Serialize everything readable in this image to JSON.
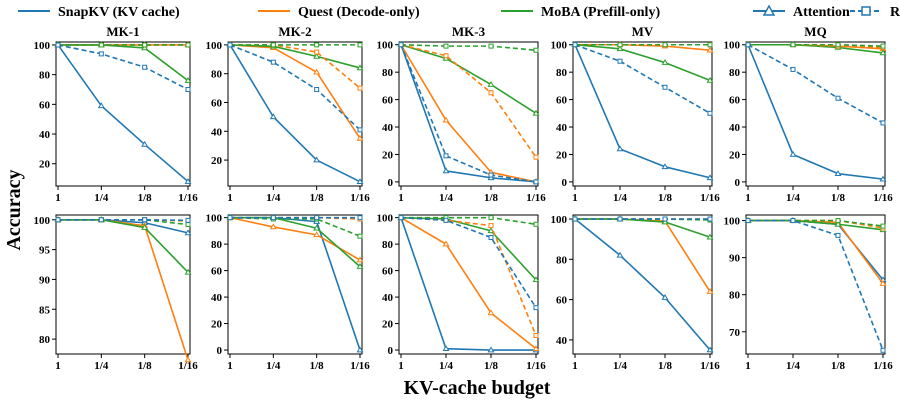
{
  "figure": {
    "ylabel": "Accuracy",
    "xlabel": "KV-cache budget",
    "legend": {
      "placement": "top",
      "entries": [
        {
          "label": "SnapKV (KV cache)",
          "color": "#1f77b4",
          "style": "solid",
          "marker": "none"
        },
        {
          "label": "Quest (Decode-only)",
          "color": "#ff7f0e",
          "style": "solid",
          "marker": "none"
        },
        {
          "label": "MoBA (Prefill-only)",
          "color": "#2ca02c",
          "style": "solid",
          "marker": "none"
        },
        {
          "label": "Attention",
          "color": "#1f77b4",
          "style": "solid",
          "marker": "triangle"
        },
        {
          "label": "RAT+",
          "color": "#1f77b4",
          "style": "dashed",
          "marker": "square"
        }
      ]
    }
  },
  "chart_data": [
    {
      "type": "line",
      "title": "MK-1",
      "row": 0,
      "col": 0,
      "xcategories": [
        "1",
        "1/4",
        "1/8",
        "1/16"
      ],
      "ylim": [
        5,
        102
      ],
      "yticks": [
        20,
        40,
        60,
        80,
        100
      ],
      "grid": false,
      "series": [
        {
          "name": "SnapKV (KV cache)",
          "color": "#1f77b4",
          "values": [
            100,
            59,
            33,
            8
          ]
        },
        {
          "name": "Quest (Decode-only)",
          "color": "#ff7f0e",
          "values": [
            100,
            100,
            100,
            100
          ]
        },
        {
          "name": "MoBA (Prefill-only)",
          "color": "#2ca02c",
          "values": [
            100,
            100,
            98,
            76
          ]
        },
        {
          "name": "Quest+RAT+",
          "color": "#ff7f0e",
          "dashed": true,
          "values": [
            100,
            100,
            100,
            100
          ]
        },
        {
          "name": "MoBA+RAT+",
          "color": "#2ca02c",
          "dashed": true,
          "values": [
            100,
            100,
            100,
            100
          ]
        },
        {
          "name": "SnapKV+RAT+",
          "color": "#1f77b4",
          "dashed": true,
          "values": [
            100,
            94,
            85,
            70
          ]
        }
      ]
    },
    {
      "type": "line",
      "title": "MK-2",
      "row": 0,
      "col": 1,
      "xcategories": [
        "1",
        "1/4",
        "1/8",
        "1/16"
      ],
      "ylim": [
        2,
        102
      ],
      "yticks": [
        20,
        40,
        60,
        80,
        100
      ],
      "grid": false,
      "series": [
        {
          "name": "SnapKV (KV cache)",
          "color": "#1f77b4",
          "values": [
            100,
            50,
            20,
            5
          ]
        },
        {
          "name": "Quest (Decode-only)",
          "color": "#ff7f0e",
          "values": [
            100,
            98,
            81,
            35
          ]
        },
        {
          "name": "MoBA (Prefill-only)",
          "color": "#2ca02c",
          "values": [
            100,
            99,
            92,
            84
          ]
        },
        {
          "name": "Quest+RAT+",
          "color": "#ff7f0e",
          "dashed": true,
          "values": [
            100,
            100,
            95,
            70
          ]
        },
        {
          "name": "MoBA+RAT+",
          "color": "#2ca02c",
          "dashed": true,
          "values": [
            100,
            100,
            100,
            100
          ]
        },
        {
          "name": "SnapKV+RAT+",
          "color": "#1f77b4",
          "dashed": true,
          "values": [
            100,
            88,
            69,
            41
          ]
        }
      ]
    },
    {
      "type": "line",
      "title": "MK-3",
      "row": 0,
      "col": 2,
      "xcategories": [
        "1",
        "1/4",
        "1/8",
        "1/16"
      ],
      "ylim": [
        -3,
        102
      ],
      "yticks": [
        0,
        20,
        40,
        60,
        80,
        100
      ],
      "grid": false,
      "series": [
        {
          "name": "SnapKV (KV cache)",
          "color": "#1f77b4",
          "values": [
            100,
            8,
            3,
            0
          ]
        },
        {
          "name": "Quest (Decode-only)",
          "color": "#ff7f0e",
          "values": [
            100,
            45,
            7,
            0
          ]
        },
        {
          "name": "MoBA (Prefill-only)",
          "color": "#2ca02c",
          "values": [
            100,
            90,
            71,
            50
          ]
        },
        {
          "name": "Quest+RAT+",
          "color": "#ff7f0e",
          "dashed": true,
          "values": [
            100,
            92,
            65,
            18
          ]
        },
        {
          "name": "MoBA+RAT+",
          "color": "#2ca02c",
          "dashed": true,
          "values": [
            100,
            99,
            99,
            96
          ]
        },
        {
          "name": "SnapKV+RAT+",
          "color": "#1f77b4",
          "dashed": true,
          "values": [
            100,
            19,
            5,
            0
          ]
        }
      ]
    },
    {
      "type": "line",
      "title": "MV",
      "row": 0,
      "col": 3,
      "xcategories": [
        "1",
        "1/4",
        "1/8",
        "1/16"
      ],
      "ylim": [
        -3,
        102
      ],
      "yticks": [
        0,
        20,
        40,
        60,
        80,
        100
      ],
      "grid": false,
      "series": [
        {
          "name": "SnapKV (KV cache)",
          "color": "#1f77b4",
          "values": [
            100,
            24,
            11,
            3
          ]
        },
        {
          "name": "Quest (Decode-only)",
          "color": "#ff7f0e",
          "values": [
            100,
            100,
            99,
            96
          ]
        },
        {
          "name": "MoBA (Prefill-only)",
          "color": "#2ca02c",
          "values": [
            100,
            97,
            87,
            74
          ]
        },
        {
          "name": "Quest+RAT+",
          "color": "#ff7f0e",
          "dashed": true,
          "values": [
            100,
            100,
            100,
            100
          ]
        },
        {
          "name": "MoBA+RAT+",
          "color": "#2ca02c",
          "dashed": true,
          "values": [
            100,
            100,
            100,
            100
          ]
        },
        {
          "name": "SnapKV+RAT+",
          "color": "#1f77b4",
          "dashed": true,
          "values": [
            100,
            88,
            69,
            50
          ]
        }
      ]
    },
    {
      "type": "line",
      "title": "MQ",
      "row": 0,
      "col": 4,
      "xcategories": [
        "1",
        "1/4",
        "1/8",
        "1/16"
      ],
      "ylim": [
        -3,
        102
      ],
      "yticks": [
        0,
        20,
        40,
        60,
        80,
        100
      ],
      "grid": false,
      "series": [
        {
          "name": "SnapKV (KV cache)",
          "color": "#1f77b4",
          "values": [
            100,
            20,
            6,
            2
          ]
        },
        {
          "name": "Quest (Decode-only)",
          "color": "#ff7f0e",
          "values": [
            100,
            100,
            99,
            97
          ]
        },
        {
          "name": "MoBA (Prefill-only)",
          "color": "#2ca02c",
          "values": [
            100,
            100,
            98,
            94
          ]
        },
        {
          "name": "Quest+RAT+",
          "color": "#ff7f0e",
          "dashed": true,
          "values": [
            100,
            100,
            99,
            98
          ]
        },
        {
          "name": "MoBA+RAT+",
          "color": "#2ca02c",
          "dashed": true,
          "values": [
            100,
            100,
            100,
            99
          ]
        },
        {
          "name": "SnapKV+RAT+",
          "color": "#1f77b4",
          "dashed": true,
          "values": [
            100,
            82,
            61,
            43
          ]
        }
      ]
    },
    {
      "type": "line",
      "title": "",
      "row": 1,
      "col": 0,
      "xcategories": [
        "1",
        "1/4",
        "1/8",
        "1/16"
      ],
      "ylim": [
        77.5,
        100.8
      ],
      "yticks": [
        80,
        85,
        90,
        95,
        100
      ],
      "grid": false,
      "series": [
        {
          "name": "SnapKV (KV cache)",
          "color": "#1f77b4",
          "values": [
            100,
            100,
            99.5,
            97.8
          ]
        },
        {
          "name": "Quest (Decode-only)",
          "color": "#ff7f0e",
          "values": [
            100,
            100,
            99,
            76.5
          ]
        },
        {
          "name": "MoBA (Prefill-only)",
          "color": "#2ca02c",
          "values": [
            100,
            100,
            98.7,
            91.2
          ]
        },
        {
          "name": "Quest+RAT+",
          "color": "#ff7f0e",
          "dashed": true,
          "values": [
            100,
            100,
            100,
            99.8
          ]
        },
        {
          "name": "MoBA+RAT+",
          "color": "#2ca02c",
          "dashed": true,
          "values": [
            100,
            100,
            100,
            99.2
          ]
        },
        {
          "name": "SnapKV+RAT+",
          "color": "#1f77b4",
          "dashed": true,
          "values": [
            100,
            100,
            100,
            99.9
          ]
        }
      ]
    },
    {
      "type": "line",
      "title": "",
      "row": 1,
      "col": 1,
      "xcategories": [
        "1",
        "1/4",
        "1/8",
        "1/16"
      ],
      "ylim": [
        -3,
        102
      ],
      "yticks": [
        0,
        20,
        40,
        60,
        80,
        100
      ],
      "grid": false,
      "series": [
        {
          "name": "SnapKV (KV cache)",
          "color": "#1f77b4",
          "values": [
            100,
            100,
            97,
            0
          ]
        },
        {
          "name": "Quest (Decode-only)",
          "color": "#ff7f0e",
          "values": [
            100,
            93,
            87,
            68
          ]
        },
        {
          "name": "MoBA (Prefill-only)",
          "color": "#2ca02c",
          "values": [
            100,
            100,
            92,
            63
          ]
        },
        {
          "name": "Quest+RAT+",
          "color": "#ff7f0e",
          "dashed": true,
          "values": [
            100,
            100,
            100,
            99
          ]
        },
        {
          "name": "MoBA+RAT+",
          "color": "#2ca02c",
          "dashed": true,
          "values": [
            100,
            99,
            99,
            86
          ]
        },
        {
          "name": "SnapKV+RAT+",
          "color": "#1f77b4",
          "dashed": true,
          "values": [
            100,
            100,
            100,
            100
          ]
        }
      ]
    },
    {
      "type": "line",
      "title": "",
      "row": 1,
      "col": 2,
      "xcategories": [
        "1",
        "1/4",
        "1/8",
        "1/16"
      ],
      "ylim": [
        -3,
        102
      ],
      "yticks": [
        0,
        20,
        40,
        60,
        80,
        100
      ],
      "grid": false,
      "series": [
        {
          "name": "SnapKV (KV cache)",
          "color": "#1f77b4",
          "values": [
            100,
            1,
            0,
            0
          ]
        },
        {
          "name": "Quest (Decode-only)",
          "color": "#ff7f0e",
          "values": [
            100,
            80,
            28,
            1
          ]
        },
        {
          "name": "MoBA (Prefill-only)",
          "color": "#2ca02c",
          "values": [
            100,
            99,
            90,
            53
          ]
        },
        {
          "name": "Quest+RAT+",
          "color": "#ff7f0e",
          "dashed": true,
          "values": [
            100,
            98,
            94,
            11
          ]
        },
        {
          "name": "MoBA+RAT+",
          "color": "#2ca02c",
          "dashed": true,
          "values": [
            100,
            100,
            100,
            95
          ]
        },
        {
          "name": "SnapKV+RAT+",
          "color": "#1f77b4",
          "dashed": true,
          "values": [
            100,
            98,
            85,
            32
          ]
        }
      ]
    },
    {
      "type": "line",
      "title": "",
      "row": 1,
      "col": 3,
      "xcategories": [
        "1",
        "1/4",
        "1/8",
        "1/16"
      ],
      "ylim": [
        33,
        102
      ],
      "yticks": [
        40,
        60,
        80,
        100
      ],
      "grid": false,
      "series": [
        {
          "name": "SnapKV (KV cache)",
          "color": "#1f77b4",
          "values": [
            100,
            82,
            61,
            35
          ]
        },
        {
          "name": "Quest (Decode-only)",
          "color": "#ff7f0e",
          "values": [
            100,
            100,
            99,
            64
          ]
        },
        {
          "name": "MoBA (Prefill-only)",
          "color": "#2ca02c",
          "values": [
            100,
            100,
            98.5,
            91
          ]
        },
        {
          "name": "Quest+RAT+",
          "color": "#ff7f0e",
          "dashed": true,
          "values": [
            100,
            100,
            100,
            100
          ]
        },
        {
          "name": "MoBA+RAT+",
          "color": "#2ca02c",
          "dashed": true,
          "values": [
            100,
            100,
            100,
            99.5
          ]
        },
        {
          "name": "SnapKV+RAT+",
          "color": "#1f77b4",
          "dashed": true,
          "values": [
            100,
            100,
            100,
            100
          ]
        }
      ]
    },
    {
      "type": "line",
      "title": "",
      "row": 1,
      "col": 4,
      "xcategories": [
        "1",
        "1/4",
        "1/8",
        "1/16"
      ],
      "ylim": [
        64,
        101.5
      ],
      "yticks": [
        70,
        80,
        90,
        100
      ],
      "grid": false,
      "series": [
        {
          "name": "SnapKV (KV cache)",
          "color": "#1f77b4",
          "values": [
            100,
            100,
            99,
            84
          ]
        },
        {
          "name": "Quest (Decode-only)",
          "color": "#ff7f0e",
          "values": [
            100,
            100,
            99.5,
            83
          ]
        },
        {
          "name": "MoBA (Prefill-only)",
          "color": "#2ca02c",
          "values": [
            100,
            100,
            99,
            97.5
          ]
        },
        {
          "name": "Quest+RAT+",
          "color": "#ff7f0e",
          "dashed": true,
          "values": [
            100,
            100,
            100,
            98
          ]
        },
        {
          "name": "MoBA+RAT+",
          "color": "#2ca02c",
          "dashed": true,
          "values": [
            100,
            100,
            100,
            98.5
          ]
        },
        {
          "name": "SnapKV+RAT+",
          "color": "#1f77b4",
          "dashed": true,
          "values": [
            100,
            100,
            96,
            65
          ]
        }
      ]
    }
  ]
}
